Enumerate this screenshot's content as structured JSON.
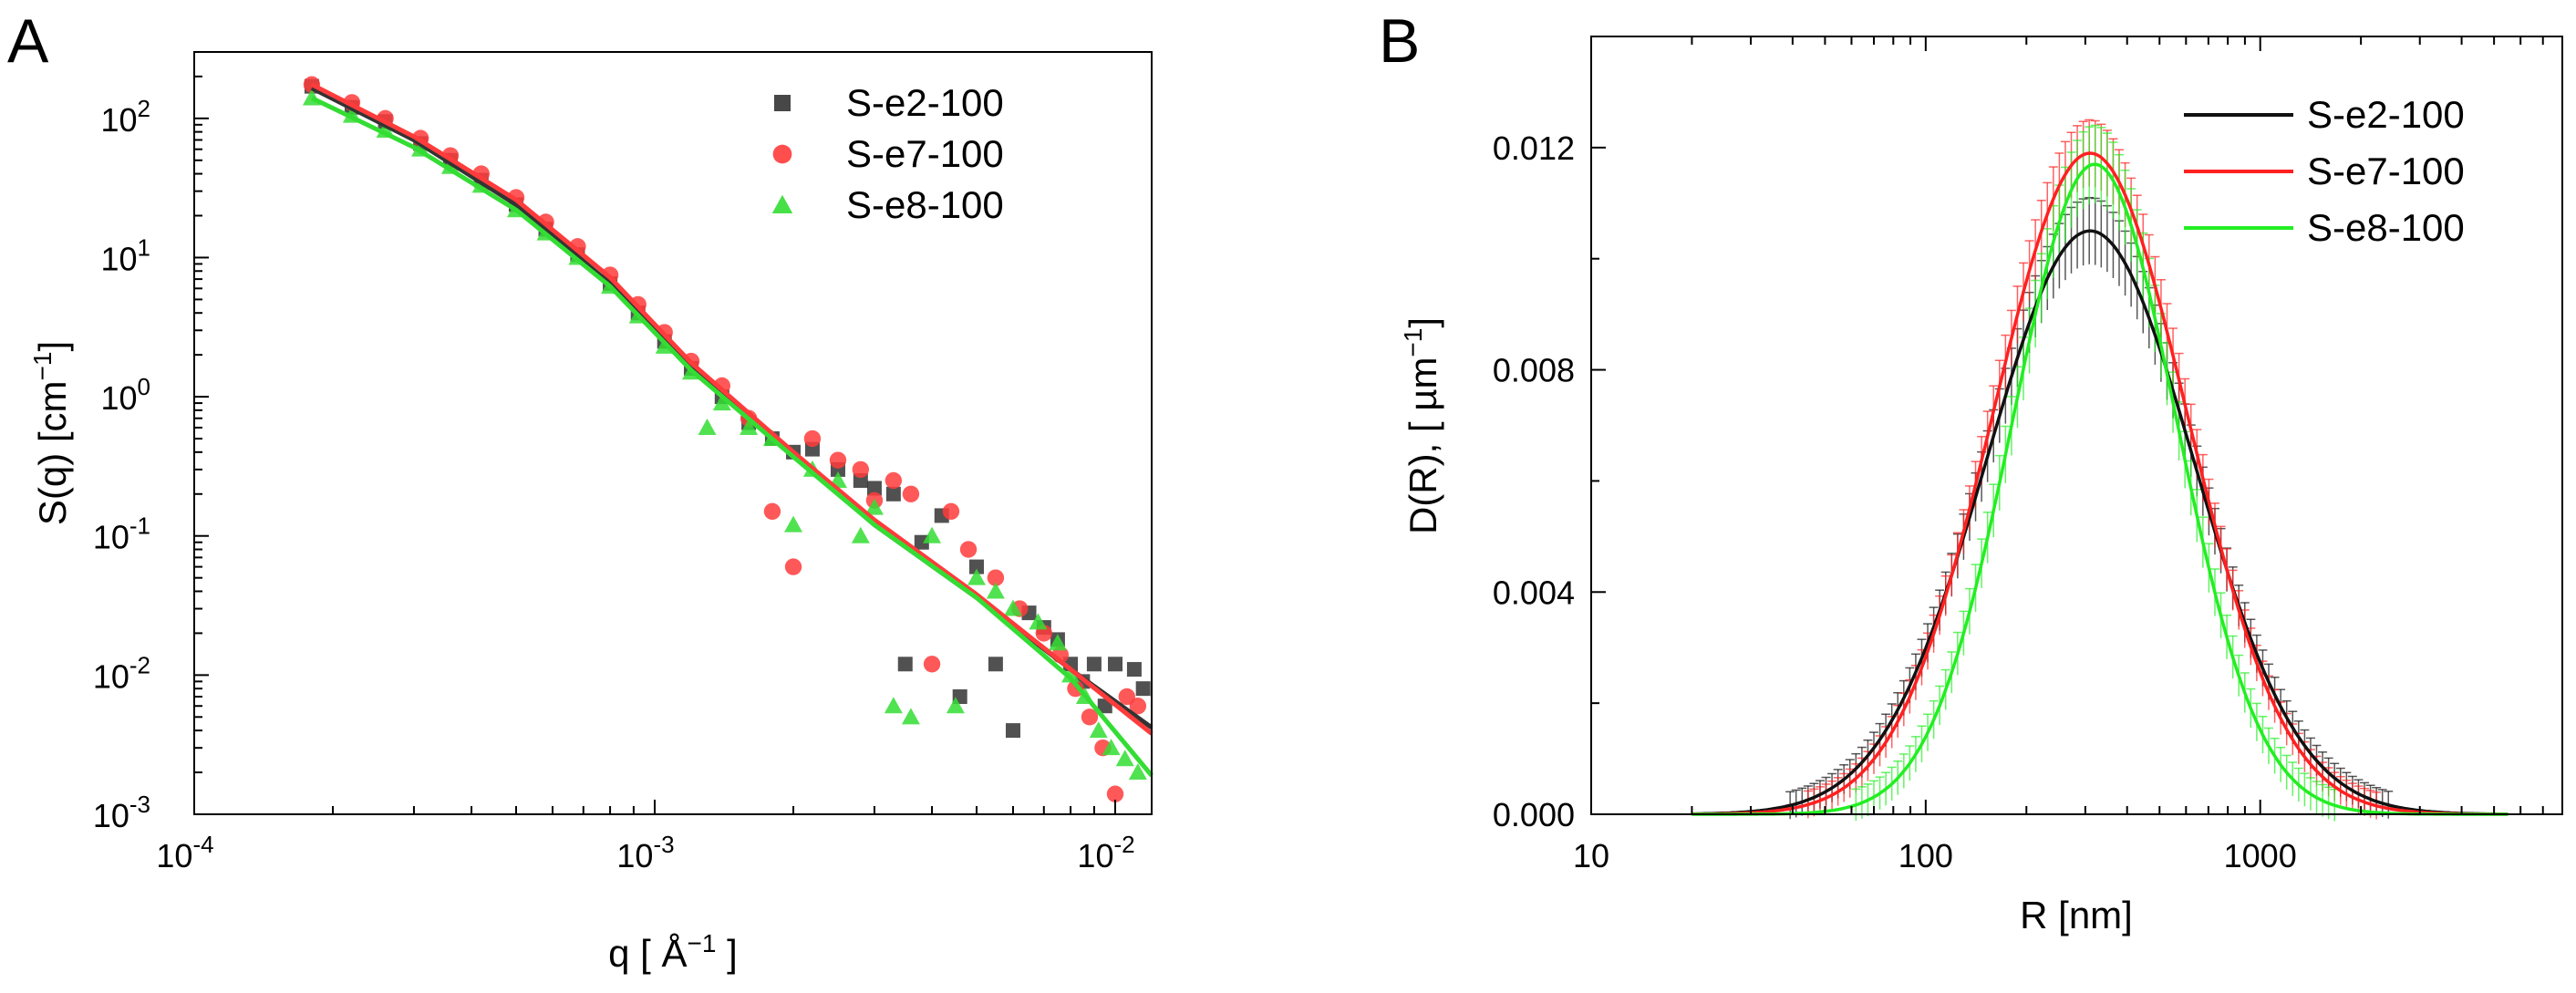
{
  "chart_data": [
    {
      "panel": "A",
      "type": "scatter",
      "xscale": "log",
      "yscale": "log",
      "xlim": [
        0.0001,
        0.012
      ],
      "ylim": [
        0.001,
        300
      ],
      "xlabel": "q [Å⁻¹]",
      "ylabel": "S(q) [cm⁻¹]",
      "x_ticks": [
        {
          "value": 0.0001,
          "mant": "10",
          "exp": "-4"
        },
        {
          "value": 0.001,
          "mant": "10",
          "exp": "-3"
        },
        {
          "value": 0.01,
          "mant": "10",
          "exp": "-2"
        }
      ],
      "y_ticks": [
        {
          "value": 0.001,
          "mant": "10",
          "exp": "-3"
        },
        {
          "value": 0.01,
          "mant": "10",
          "exp": "-2"
        },
        {
          "value": 0.1,
          "mant": "10",
          "exp": "-1"
        },
        {
          "value": 1,
          "mant": "10",
          "exp": "0"
        },
        {
          "value": 10,
          "mant": "10",
          "exp": "1"
        },
        {
          "value": 100,
          "mant": "10",
          "exp": "2"
        }
      ],
      "legend": "top-right",
      "series": [
        {
          "name": "S-e2-100",
          "marker": "square",
          "color": "#333333",
          "fit": [
            [
              0.00018,
              165
            ],
            [
              0.0003,
              70
            ],
            [
              0.0005,
              24
            ],
            [
              0.0008,
              6.5
            ],
            [
              0.0012,
              1.6
            ],
            [
              0.002,
              0.38
            ],
            [
              0.003,
              0.12
            ],
            [
              0.005,
              0.036
            ],
            [
              0.008,
              0.011
            ],
            [
              0.012,
              0.0042
            ]
          ],
          "points": [
            [
              0.00018,
              170
            ],
            [
              0.00022,
              120
            ],
            [
              0.00026,
              95
            ],
            [
              0.00031,
              66
            ],
            [
              0.00036,
              50
            ],
            [
              0.00042,
              36
            ],
            [
              0.0005,
              24
            ],
            [
              0.00058,
              16
            ],
            [
              0.00068,
              10.5
            ],
            [
              0.0008,
              6.5
            ],
            [
              0.00092,
              4.0
            ],
            [
              0.00105,
              2.5
            ],
            [
              0.0012,
              1.6
            ],
            [
              0.0014,
              1.0
            ],
            [
              0.0016,
              0.65
            ],
            [
              0.0018,
              0.5
            ],
            [
              0.002,
              0.4
            ],
            [
              0.0022,
              0.42
            ],
            [
              0.0025,
              0.3
            ],
            [
              0.0028,
              0.25
            ],
            [
              0.003,
              0.22
            ],
            [
              0.0033,
              0.2
            ],
            [
              0.0035,
              0.012
            ],
            [
              0.0038,
              0.09
            ],
            [
              0.0042,
              0.14
            ],
            [
              0.0046,
              0.007
            ],
            [
              0.005,
              0.06
            ],
            [
              0.0055,
              0.012
            ],
            [
              0.006,
              0.004
            ],
            [
              0.0065,
              0.028
            ],
            [
              0.007,
              0.022
            ],
            [
              0.0075,
              0.018
            ],
            [
              0.008,
              0.012
            ],
            [
              0.0085,
              0.009
            ],
            [
              0.009,
              0.012
            ],
            [
              0.0095,
              0.006
            ],
            [
              0.01,
              0.012
            ],
            [
              0.011,
              0.011
            ],
            [
              0.0115,
              0.008
            ]
          ]
        },
        {
          "name": "S-e7-100",
          "marker": "circle",
          "color": "#ff3b3b",
          "fit": [
            [
              0.00018,
              175
            ],
            [
              0.0003,
              74
            ],
            [
              0.0005,
              26
            ],
            [
              0.0008,
              7.2
            ],
            [
              0.0012,
              1.75
            ],
            [
              0.002,
              0.4
            ],
            [
              0.003,
              0.13
            ],
            [
              0.005,
              0.038
            ],
            [
              0.008,
              0.011
            ],
            [
              0.012,
              0.0038
            ]
          ],
          "points": [
            [
              0.00018,
              175
            ],
            [
              0.00022,
              130
            ],
            [
              0.00026,
              100
            ],
            [
              0.00031,
              72
            ],
            [
              0.00036,
              54
            ],
            [
              0.00042,
              40
            ],
            [
              0.0005,
              27
            ],
            [
              0.00058,
              18
            ],
            [
              0.00068,
              12
            ],
            [
              0.0008,
              7.5
            ],
            [
              0.00092,
              4.6
            ],
            [
              0.00105,
              2.9
            ],
            [
              0.0012,
              1.8
            ],
            [
              0.0014,
              1.2
            ],
            [
              0.0016,
              0.7
            ],
            [
              0.0018,
              0.15
            ],
            [
              0.002,
              0.06
            ],
            [
              0.0022,
              0.5
            ],
            [
              0.0025,
              0.35
            ],
            [
              0.0028,
              0.3
            ],
            [
              0.003,
              0.18
            ],
            [
              0.0033,
              0.25
            ],
            [
              0.0036,
              0.2
            ],
            [
              0.004,
              0.012
            ],
            [
              0.0044,
              0.15
            ],
            [
              0.0048,
              0.08
            ],
            [
              0.0055,
              0.05
            ],
            [
              0.0062,
              0.03
            ],
            [
              0.007,
              0.02
            ],
            [
              0.0076,
              0.014
            ],
            [
              0.0082,
              0.008
            ],
            [
              0.0088,
              0.005
            ],
            [
              0.0094,
              0.003
            ],
            [
              0.01,
              0.0014
            ],
            [
              0.0106,
              0.007
            ],
            [
              0.0112,
              0.006
            ]
          ]
        },
        {
          "name": "S-e8-100",
          "marker": "triangle",
          "color": "#33dd33",
          "fit": [
            [
              0.00018,
              140
            ],
            [
              0.0003,
              62
            ],
            [
              0.0005,
              22
            ],
            [
              0.0008,
              6.2
            ],
            [
              0.0012,
              1.55
            ],
            [
              0.002,
              0.37
            ],
            [
              0.003,
              0.12
            ],
            [
              0.005,
              0.036
            ],
            [
              0.008,
              0.0095
            ],
            [
              0.012,
              0.0019
            ]
          ],
          "points": [
            [
              0.00018,
              140
            ],
            [
              0.00022,
              105
            ],
            [
              0.00026,
              82
            ],
            [
              0.00031,
              60
            ],
            [
              0.00036,
              45
            ],
            [
              0.00042,
              33
            ],
            [
              0.0005,
              22
            ],
            [
              0.00058,
              15
            ],
            [
              0.00068,
              10
            ],
            [
              0.0008,
              6.2
            ],
            [
              0.00092,
              3.8
            ],
            [
              0.00105,
              2.3
            ],
            [
              0.0012,
              1.5
            ],
            [
              0.0013,
              0.6
            ],
            [
              0.0014,
              0.9
            ],
            [
              0.0016,
              0.6
            ],
            [
              0.0018,
              0.5
            ],
            [
              0.002,
              0.12
            ],
            [
              0.0022,
              0.3
            ],
            [
              0.0025,
              0.25
            ],
            [
              0.0028,
              0.1
            ],
            [
              0.003,
              0.16
            ],
            [
              0.0033,
              0.006
            ],
            [
              0.0036,
              0.005
            ],
            [
              0.004,
              0.1
            ],
            [
              0.0045,
              0.006
            ],
            [
              0.005,
              0.05
            ],
            [
              0.0055,
              0.04
            ],
            [
              0.006,
              0.03
            ],
            [
              0.0068,
              0.024
            ],
            [
              0.0075,
              0.017
            ],
            [
              0.008,
              0.01
            ],
            [
              0.0086,
              0.007
            ],
            [
              0.0092,
              0.004
            ],
            [
              0.0098,
              0.003
            ],
            [
              0.0105,
              0.0025
            ],
            [
              0.0112,
              0.002
            ]
          ]
        }
      ]
    },
    {
      "panel": "B",
      "type": "line",
      "xscale": "log",
      "xlim": [
        10,
        8000
      ],
      "ylim": [
        0,
        0.014
      ],
      "xlabel": "R [nm]",
      "ylabel": "D(R), [ µm⁻¹]",
      "x_ticks": [
        {
          "value": 10,
          "label": "10"
        },
        {
          "value": 100,
          "label": "100"
        },
        {
          "value": 1000,
          "label": "1000"
        }
      ],
      "y_ticks": [
        {
          "value": 0,
          "label": "0.000"
        },
        {
          "value": 0.004,
          "label": "0.004"
        },
        {
          "value": 0.008,
          "label": "0.008"
        },
        {
          "value": 0.012,
          "label": "0.012"
        }
      ],
      "legend": "top-right",
      "error_bars": true,
      "series": [
        {
          "name": "S-e2-100",
          "color": "#111111",
          "peak_R": 310,
          "peak_D": 0.0105,
          "log_sigma": 0.31,
          "error": 0.0006
        },
        {
          "name": "S-e7-100",
          "color": "#ff2020",
          "peak_R": 310,
          "peak_D": 0.0119,
          "log_sigma": 0.29,
          "error": 0.0006
        },
        {
          "name": "S-e8-100",
          "color": "#22ee22",
          "peak_R": 320,
          "peak_D": 0.0117,
          "log_sigma": 0.245,
          "error": 0.0007
        }
      ]
    }
  ]
}
